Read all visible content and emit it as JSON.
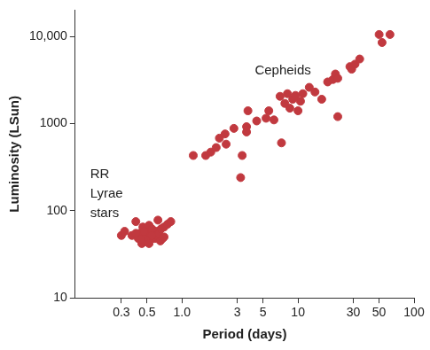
{
  "chart_data": {
    "type": "scatter",
    "x_label": "Period (days)",
    "y_label": "Luminosity (LSun)",
    "log": true,
    "grid": false,
    "marker": "circle",
    "color": "#c1393f",
    "xlim": [
      0.12,
      100
    ],
    "xticks": [
      0.3,
      0.5,
      {
        "value": 1,
        "label": "1.0"
      },
      3,
      5,
      10,
      30,
      50,
      100
    ],
    "ylim": [
      10,
      20000
    ],
    "yticks": [
      10,
      100,
      1000,
      {
        "value": 10000,
        "label": "10,000"
      }
    ],
    "annotations": [
      {
        "text": "Cepheids"
      },
      {
        "text": "RR Lyrae stars"
      }
    ],
    "x": [
      0.3,
      0.32,
      0.37,
      0.4,
      0.42,
      0.43,
      0.45,
      0.46,
      0.48,
      0.5,
      0.5,
      0.52,
      0.52,
      0.53,
      0.55,
      0.56,
      0.58,
      0.6,
      0.6,
      0.62,
      0.63,
      0.65,
      0.66,
      0.68,
      0.7,
      0.7,
      0.75,
      0.8,
      0.47,
      0.55,
      0.4,
      0.44,
      1.25,
      1.6,
      1.77,
      1.97,
      2.1,
      2.35,
      2.4,
      2.8,
      3.2,
      3.3,
      3.6,
      3.6,
      3.7,
      4.4,
      5.3,
      5.6,
      6.2,
      7.0,
      7.2,
      7.7,
      8.1,
      8.5,
      9,
      9.5,
      10,
      10.5,
      11,
      12.5,
      14,
      16,
      18,
      20,
      21,
      22,
      22,
      28,
      29,
      31,
      34,
      50,
      53,
      62
    ],
    "values": [
      52,
      58,
      52,
      75,
      48,
      55,
      42,
      65,
      50,
      58,
      45,
      42,
      68,
      55,
      62,
      50,
      48,
      58,
      52,
      78,
      55,
      45,
      62,
      48,
      50,
      65,
      70,
      75,
      58,
      52,
      55,
      47,
      430,
      430,
      470,
      530,
      680,
      760,
      580,
      880,
      240,
      430,
      920,
      800,
      1400,
      1070,
      1150,
      1400,
      1100,
      2050,
      600,
      1700,
      2200,
      1500,
      1900,
      2100,
      1400,
      1800,
      2200,
      2600,
      2300,
      1900,
      3000,
      3200,
      3700,
      3300,
      1200,
      4500,
      4200,
      4800,
      5500,
      10500,
      8500,
      10500
    ]
  }
}
